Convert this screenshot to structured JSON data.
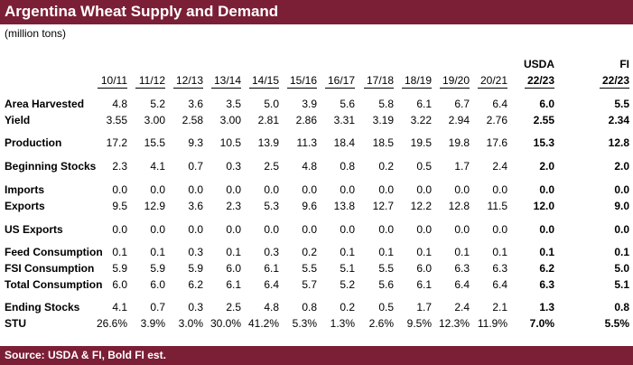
{
  "title": "Argentina Wheat Supply and Demand",
  "subtitle": "(million tons)",
  "footer": "Source: USDA & FI,   Bold FI est.",
  "columns": [
    {
      "top": "",
      "bottom": "10/11"
    },
    {
      "top": "",
      "bottom": "11/12"
    },
    {
      "top": "",
      "bottom": "12/13"
    },
    {
      "top": "",
      "bottom": "13/14"
    },
    {
      "top": "",
      "bottom": "14/15"
    },
    {
      "top": "",
      "bottom": "15/16"
    },
    {
      "top": "",
      "bottom": "16/17"
    },
    {
      "top": "",
      "bottom": "17/18"
    },
    {
      "top": "",
      "bottom": "18/19"
    },
    {
      "top": "",
      "bottom": "19/20"
    },
    {
      "top": "",
      "bottom": "20/21"
    },
    {
      "top": "USDA",
      "bottom": "22/23"
    },
    {
      "top": "FI",
      "bottom": "22/23"
    }
  ],
  "rows": [
    {
      "label": "Area Harvested",
      "values": [
        "4.8",
        "5.2",
        "3.6",
        "3.5",
        "5.0",
        "3.9",
        "5.6",
        "5.8",
        "6.1",
        "6.7",
        "6.4",
        "6.0",
        "5.5"
      ]
    },
    {
      "label": "Yield",
      "values": [
        "3.55",
        "3.00",
        "2.58",
        "3.00",
        "2.81",
        "2.86",
        "3.31",
        "3.19",
        "3.22",
        "2.94",
        "2.76",
        "2.55",
        "2.34"
      ]
    },
    {
      "label": "Production",
      "values": [
        "17.2",
        "15.5",
        "9.3",
        "10.5",
        "13.9",
        "11.3",
        "18.4",
        "18.5",
        "19.5",
        "19.8",
        "17.6",
        "15.3",
        "12.8"
      ]
    },
    {
      "label": "Beginning Stocks",
      "values": [
        "2.3",
        "4.1",
        "0.7",
        "0.3",
        "2.5",
        "4.8",
        "0.8",
        "0.2",
        "0.5",
        "1.7",
        "2.4",
        "2.0",
        "2.0"
      ]
    },
    {
      "label": "Imports",
      "values": [
        "0.0",
        "0.0",
        "0.0",
        "0.0",
        "0.0",
        "0.0",
        "0.0",
        "0.0",
        "0.0",
        "0.0",
        "0.0",
        "0.0",
        "0.0"
      ]
    },
    {
      "label": "Exports",
      "values": [
        "9.5",
        "12.9",
        "3.6",
        "2.3",
        "5.3",
        "9.6",
        "13.8",
        "12.7",
        "12.2",
        "12.8",
        "11.5",
        "12.0",
        "9.0"
      ]
    },
    {
      "label": "US Exports",
      "values": [
        "0.0",
        "0.0",
        "0.0",
        "0.0",
        "0.0",
        "0.0",
        "0.0",
        "0.0",
        "0.0",
        "0.0",
        "0.0",
        "0.0",
        "0.0"
      ]
    },
    {
      "label": "Feed Consumption",
      "values": [
        "0.1",
        "0.1",
        "0.3",
        "0.1",
        "0.3",
        "0.2",
        "0.1",
        "0.1",
        "0.1",
        "0.1",
        "0.1",
        "0.1",
        "0.1"
      ]
    },
    {
      "label": "FSI Consumption",
      "values": [
        "5.9",
        "5.9",
        "5.9",
        "6.0",
        "6.1",
        "5.5",
        "5.1",
        "5.5",
        "6.0",
        "6.3",
        "6.3",
        "6.2",
        "5.0"
      ]
    },
    {
      "label": "Total Consumption",
      "values": [
        "6.0",
        "6.0",
        "6.2",
        "6.1",
        "6.4",
        "5.7",
        "5.2",
        "5.6",
        "6.1",
        "6.4",
        "6.4",
        "6.3",
        "5.1"
      ]
    },
    {
      "label": "Ending Stocks",
      "values": [
        "4.1",
        "0.7",
        "0.3",
        "2.5",
        "4.8",
        "0.8",
        "0.2",
        "0.5",
        "1.7",
        "2.4",
        "2.1",
        "1.3",
        "0.8"
      ]
    },
    {
      "label": "STU",
      "values": [
        "26.6%",
        "3.9%",
        "3.0%",
        "30.0%",
        "41.2%",
        "5.3%",
        "1.3%",
        "2.6%",
        "9.5%",
        "12.3%",
        "11.9%",
        "7.0%",
        "5.5%"
      ]
    }
  ],
  "bold_columns_from": 11,
  "colors": {
    "header_bar": "#7b1f36",
    "header_text": "#ffffff"
  }
}
